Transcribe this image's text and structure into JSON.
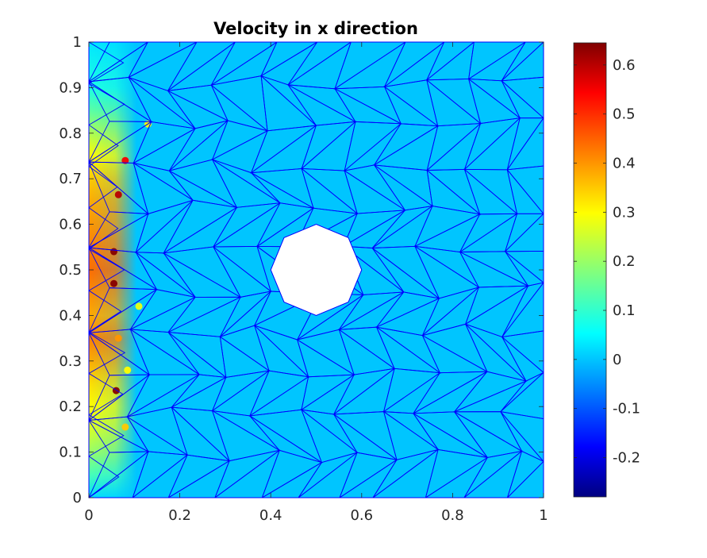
{
  "chart_data": {
    "type": "heatmap",
    "title": "Velocity in x direction",
    "xlabel": "",
    "ylabel": "",
    "xlim": [
      0,
      1
    ],
    "ylim": [
      0,
      1
    ],
    "x_ticks": [
      "0",
      "0.2",
      "0.4",
      "0.6",
      "0.8",
      "1"
    ],
    "y_ticks": [
      "0",
      "0.1",
      "0.2",
      "0.3",
      "0.4",
      "0.5",
      "0.6",
      "0.7",
      "0.8",
      "0.9",
      "1"
    ],
    "colorbar": {
      "colormap": "jet",
      "range": [
        -0.28,
        0.645
      ],
      "ticks": [
        "-0.2",
        "-0.1",
        "0",
        "0.1",
        "0.2",
        "0.3",
        "0.4",
        "0.5",
        "0.6"
      ]
    },
    "background_value": 0,
    "hole": {
      "shape": "octagon",
      "center": [
        0.5,
        0.5
      ],
      "radius": 0.1
    },
    "mesh_color": "#0000ff",
    "near_wall_band": {
      "x_range": [
        0,
        0.03
      ],
      "profile": [
        {
          "y": 0.0,
          "value": 0.02
        },
        {
          "y": 0.05,
          "value": 0.12
        },
        {
          "y": 0.1,
          "value": 0.2
        },
        {
          "y": 0.15,
          "value": 0.26
        },
        {
          "y": 0.2,
          "value": 0.3
        },
        {
          "y": 0.25,
          "value": 0.33
        },
        {
          "y": 0.3,
          "value": 0.38
        },
        {
          "y": 0.35,
          "value": 0.42
        },
        {
          "y": 0.4,
          "value": 0.38
        },
        {
          "y": 0.45,
          "value": 0.41
        },
        {
          "y": 0.5,
          "value": 0.44
        },
        {
          "y": 0.55,
          "value": 0.42
        },
        {
          "y": 0.6,
          "value": 0.4
        },
        {
          "y": 0.65,
          "value": 0.38
        },
        {
          "y": 0.7,
          "value": 0.35
        },
        {
          "y": 0.75,
          "value": 0.3
        },
        {
          "y": 0.8,
          "value": 0.22
        },
        {
          "y": 0.85,
          "value": 0.14
        },
        {
          "y": 0.9,
          "value": 0.08
        },
        {
          "y": 1.0,
          "value": 0.03
        }
      ]
    },
    "hot_spots": [
      {
        "x": 0.06,
        "y": 0.235,
        "value": 0.64
      },
      {
        "x": 0.08,
        "y": 0.155,
        "value": 0.35
      },
      {
        "x": 0.065,
        "y": 0.35,
        "value": 0.4
      },
      {
        "x": 0.055,
        "y": 0.47,
        "value": 0.64
      },
      {
        "x": 0.055,
        "y": 0.54,
        "value": 0.64
      },
      {
        "x": 0.065,
        "y": 0.665,
        "value": 0.6
      },
      {
        "x": 0.08,
        "y": 0.74,
        "value": 0.55
      },
      {
        "x": 0.13,
        "y": 0.82,
        "value": 0.3
      },
      {
        "x": 0.085,
        "y": 0.28,
        "value": 0.3
      },
      {
        "x": 0.11,
        "y": 0.42,
        "value": 0.28
      }
    ]
  }
}
